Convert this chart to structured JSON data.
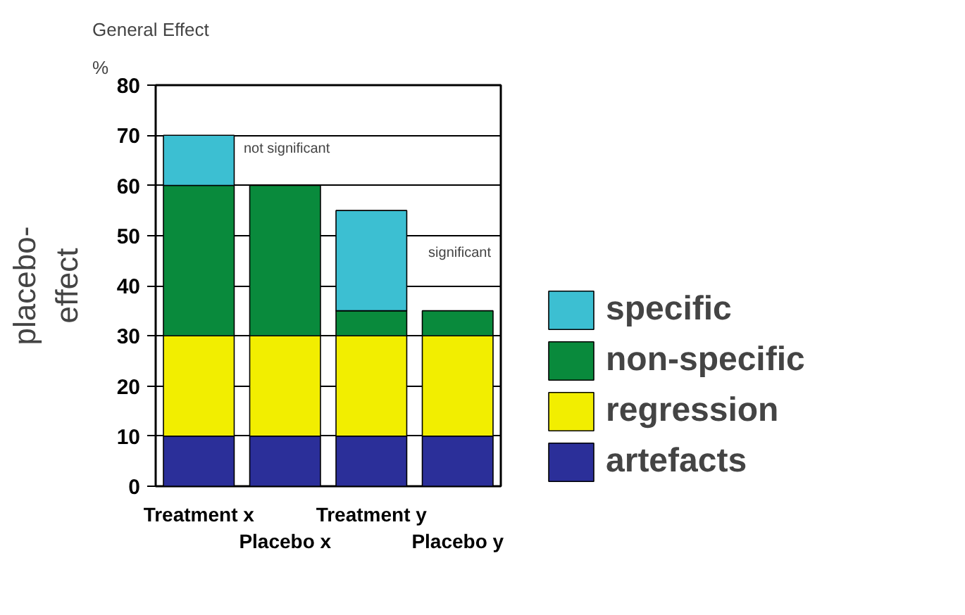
{
  "chart_data": {
    "type": "bar",
    "stacked": true,
    "title": "General Effect",
    "subtitle": "%",
    "ylabel": "placebo-\neffect",
    "categories": [
      "Treatment x",
      "Placebo x",
      "Treatment y",
      "Placebo y"
    ],
    "series": [
      {
        "name": "artefacts",
        "color": "#2b2f99",
        "values": [
          10,
          10,
          10,
          10
        ]
      },
      {
        "name": "regression",
        "color": "#f2ee00",
        "values": [
          20,
          20,
          20,
          20
        ]
      },
      {
        "name": "non-specific",
        "color": "#098a3c",
        "values": [
          30,
          30,
          5,
          5
        ]
      },
      {
        "name": "specific",
        "color": "#3cbfd2",
        "values": [
          10,
          0,
          20,
          0
        ]
      }
    ],
    "ylim": [
      0,
      80
    ],
    "yticks": [
      0,
      10,
      20,
      30,
      40,
      50,
      60,
      70,
      80
    ],
    "grid": "y",
    "legend": "right",
    "annotations": [
      "not significant",
      "significant"
    ]
  }
}
